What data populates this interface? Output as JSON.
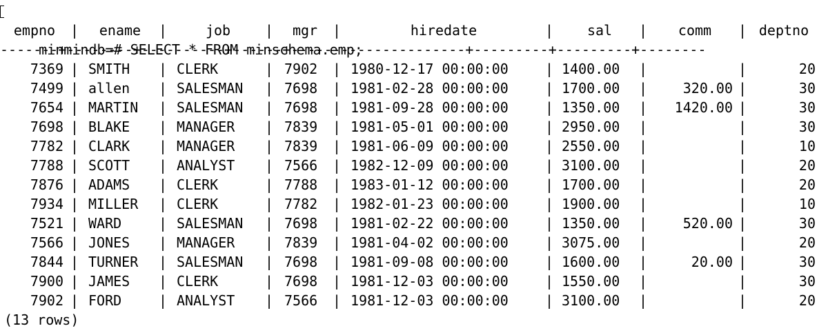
{
  "terminal": {
    "prompt": "minmindb=# SELECT * FROM minschema.emp;",
    "separator_line": "-------+--------+----------+------+---------------------+---------+---------+--------",
    "footer": "(13 rows)"
  },
  "table": {
    "columns": [
      "empno",
      "ename",
      "job",
      "mgr",
      "hiredate",
      "sal",
      "comm",
      "deptno"
    ],
    "rows": [
      [
        "7369",
        "SMITH",
        "CLERK",
        "7902",
        "1980-12-17 00:00:00",
        "1400.00",
        "",
        "20"
      ],
      [
        "7499",
        "allen",
        "SALESMAN",
        "7698",
        "1981-02-28 00:00:00",
        "1700.00",
        "320.00",
        "30"
      ],
      [
        "7654",
        "MARTIN",
        "SALESMAN",
        "7698",
        "1981-09-28 00:00:00",
        "1350.00",
        "1420.00",
        "30"
      ],
      [
        "7698",
        "BLAKE",
        "MANAGER",
        "7839",
        "1981-05-01 00:00:00",
        "2950.00",
        "",
        "30"
      ],
      [
        "7782",
        "CLARK",
        "MANAGER",
        "7839",
        "1981-06-09 00:00:00",
        "2550.00",
        "",
        "10"
      ],
      [
        "7788",
        "SCOTT",
        "ANALYST",
        "7566",
        "1982-12-09 00:00:00",
        "3100.00",
        "",
        "20"
      ],
      [
        "7876",
        "ADAMS",
        "CLERK",
        "7788",
        "1983-01-12 00:00:00",
        "1700.00",
        "",
        "20"
      ],
      [
        "7934",
        "MILLER",
        "CLERK",
        "7782",
        "1982-01-23 00:00:00",
        "1900.00",
        "",
        "10"
      ],
      [
        "7521",
        "WARD",
        "SALESMAN",
        "7698",
        "1981-02-22 00:00:00",
        "1350.00",
        "520.00",
        "30"
      ],
      [
        "7566",
        "JONES",
        "MANAGER",
        "7839",
        "1981-04-02 00:00:00",
        "3075.00",
        "",
        "20"
      ],
      [
        "7844",
        "TURNER",
        "SALESMAN",
        "7698",
        "1981-09-08 00:00:00",
        "1600.00",
        "20.00",
        "30"
      ],
      [
        "7900",
        "JAMES",
        "CLERK",
        "7698",
        "1981-12-03 00:00:00",
        "1550.00",
        "",
        "30"
      ],
      [
        "7902",
        "FORD",
        "ANALYST",
        "7566",
        "1981-12-03 00:00:00",
        "3100.00",
        "",
        "20"
      ]
    ]
  }
}
